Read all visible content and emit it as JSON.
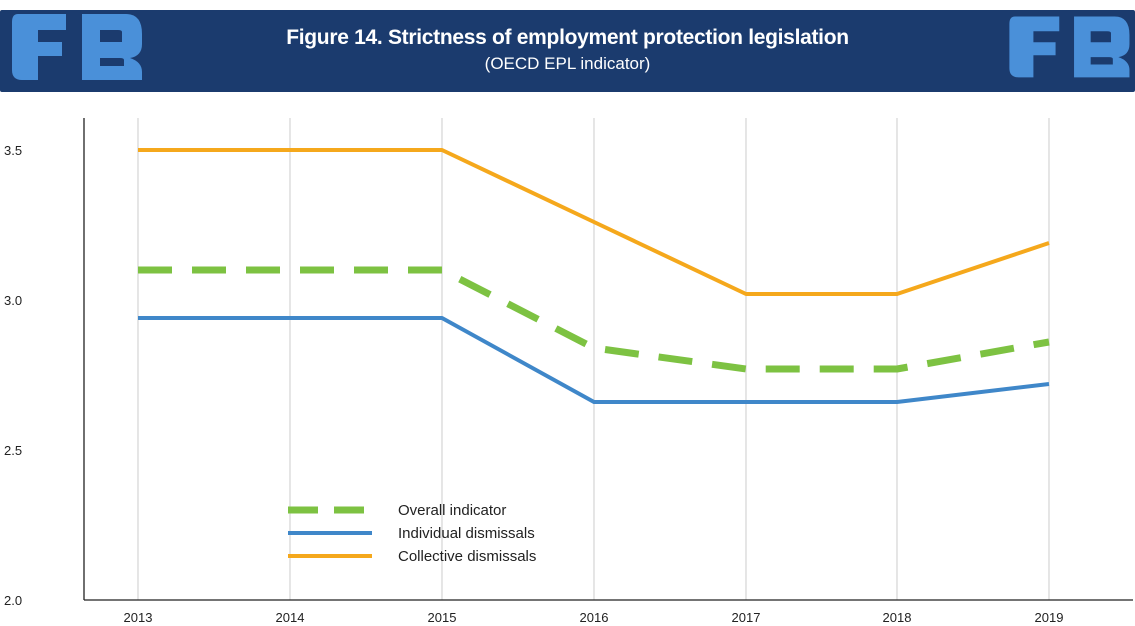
{
  "header": {
    "title": "Figure 14. Strictness of employment protection legislation",
    "subtitle": "(OECD EPL indicator)"
  },
  "colors": {
    "header_bg": "#1b3b6e",
    "logo_fill": "#4a90d9",
    "overall": "#7dc242",
    "individual": "#3f87c9",
    "collective": "#f5a81c",
    "grid": "#d4d4d4",
    "axis": "#222222"
  },
  "icons": {
    "logo": "eu-emblem-icon"
  },
  "chart_data": {
    "type": "line",
    "categories": [
      "2013",
      "2014",
      "2015",
      "2016",
      "2017",
      "2018",
      "2019"
    ],
    "yticks": [
      "2.0",
      "2.5",
      "3.0",
      "3.5"
    ],
    "ylim": [
      2.0,
      3.6
    ],
    "grid": "vertical",
    "legend_position": "lower-left",
    "series": [
      {
        "name": "Overall indicator",
        "style": "dashed",
        "color": "#7dc242",
        "values": [
          3.1,
          3.1,
          3.1,
          2.84,
          2.77,
          2.77,
          2.86
        ]
      },
      {
        "name": "Individual dismissals",
        "style": "solid",
        "color": "#3f87c9",
        "values": [
          2.94,
          2.94,
          2.94,
          2.66,
          2.66,
          2.66,
          2.72
        ]
      },
      {
        "name": "Collective dismissals",
        "style": "solid",
        "color": "#f5a81c",
        "values": [
          3.5,
          3.5,
          3.5,
          3.26,
          3.02,
          3.02,
          3.19
        ]
      }
    ]
  }
}
